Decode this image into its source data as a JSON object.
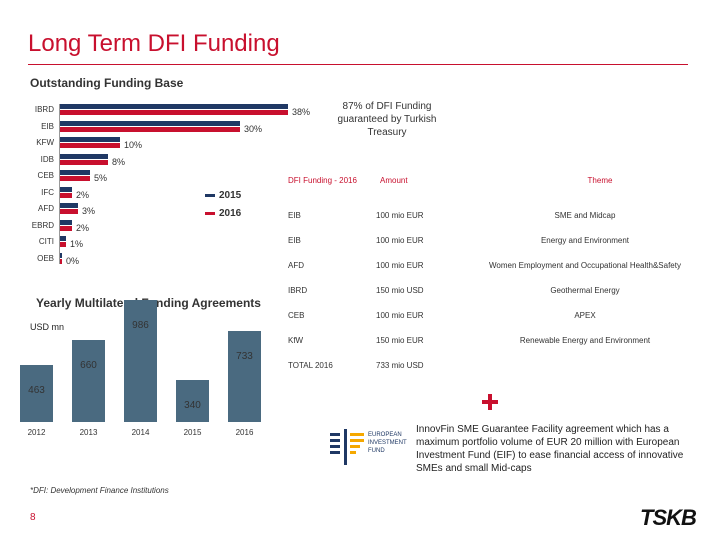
{
  "page": {
    "title": "Long Term DFI Funding",
    "page_number": "8",
    "footnote": "*DFI: Development Finance Institutions"
  },
  "sections": {
    "outstanding_title": "Outstanding Funding Base",
    "yearly_title": "Yearly Multilateral Funding Agreements",
    "usd_mn": "USD mn"
  },
  "guarantee_note": "87% of DFI Funding guaranteed by Turkish Treasury",
  "table": {
    "headers": [
      "DFI Funding - 2016",
      "Amount",
      "Theme"
    ],
    "rows": [
      [
        "EIB",
        "100 mio EUR",
        "SME and Midcap"
      ],
      [
        "EIB",
        "100 mio EUR",
        "Energy and Environment"
      ],
      [
        "AFD",
        "100 mio EUR",
        "Women Employment and Occupational Health&Safety"
      ],
      [
        "IBRD",
        "150 mio USD",
        "Geothermal Energy"
      ],
      [
        "CEB",
        "100 mio EUR",
        "APEX"
      ],
      [
        "KfW",
        "150 mio EUR",
        "Renewable Energy and Environment"
      ],
      [
        "TOTAL 2016",
        "733 mio USD",
        ""
      ]
    ]
  },
  "eif": {
    "logo_text": "EUROPEAN INVESTMENT FUND",
    "description": "InnovFin SME Guarantee Facility agreement which has a maximum portfolio volume of EUR 20 million with European Investment Fund (EIF) to ease financial access of innovative SMEs and small Mid-caps"
  },
  "brand": {
    "name": "TSKB",
    "accent": "#c8102e",
    "navy": "#1f3864",
    "bar": "#4a6a80"
  },
  "chart_data": [
    {
      "type": "bar",
      "orientation": "horizontal",
      "title": "Outstanding Funding Base",
      "categories": [
        "IBRD",
        "EIB",
        "KFW",
        "IDB",
        "CEB",
        "IFC",
        "AFD",
        "EBRD",
        "CITI",
        "OEB"
      ],
      "series": [
        {
          "name": "2015",
          "values": [
            38,
            30,
            10,
            8,
            5,
            2,
            3,
            2,
            1,
            0
          ]
        },
        {
          "name": "2016",
          "values": [
            38,
            30,
            10,
            8,
            5,
            2,
            3,
            2,
            1,
            0
          ]
        }
      ],
      "data_labels": [
        "38%",
        "30%",
        "10%",
        "8%",
        "5%",
        "2%",
        "3%",
        "2%",
        "1%",
        "0%"
      ],
      "legend": [
        "2015",
        "2016"
      ],
      "xlim": [
        0,
        40
      ]
    },
    {
      "type": "bar",
      "title": "Yearly Multilateral Funding Agreements",
      "ylabel": "USD mn",
      "categories": [
        "2012",
        "2013",
        "2014",
        "2015",
        "2016"
      ],
      "values": [
        463,
        660,
        986,
        340,
        733
      ],
      "ylim": [
        0,
        1000
      ]
    }
  ]
}
